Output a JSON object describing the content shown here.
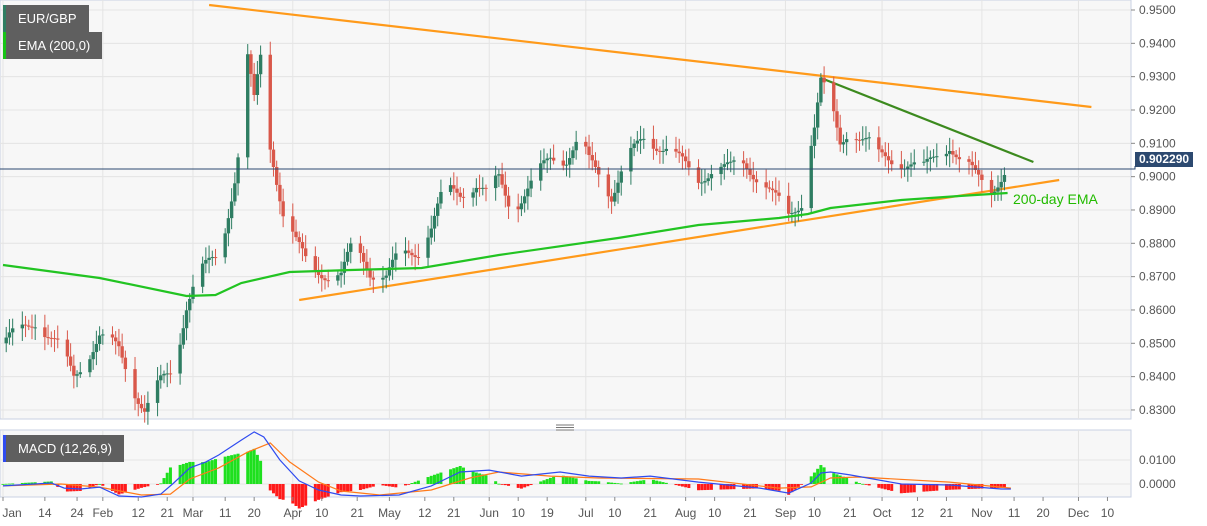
{
  "symbol_label": "EUR/GBP",
  "ema_label": "EMA (200,0)",
  "macd_label": "MACD (12,26,9)",
  "annotation": "200-day EMA",
  "last_price": "0.902290",
  "colors": {
    "up": "#2e7d62",
    "down": "#d9584a",
    "trend_orange": "#ff9a1a",
    "trend_green": "#3c8a1e",
    "ema": "#22c422",
    "macd": "#2f4bf0",
    "signal": "#ff7a1a",
    "hist_up": "#1ee01e",
    "hist_down": "#ff1a1a",
    "price_tag": "#2c4970"
  },
  "chart_data": {
    "type": "candlestick",
    "title": "EUR/GBP",
    "x_unit": "day of year",
    "price_axis": {
      "ylim": [
        0.83,
        0.95
      ],
      "ticks": [
        "0.9500",
        "0.9400",
        "0.9300",
        "0.9200",
        "0.9100",
        "0.9000",
        "0.8900",
        "0.8800",
        "0.8700",
        "0.8600",
        "0.8500",
        "0.8400",
        "0.8300"
      ]
    },
    "macd_axis": {
      "ticks": [
        "0.0100",
        "0.0000"
      ]
    },
    "x_ticks": [
      {
        "label": "Jan",
        "day": 0
      },
      {
        "label": "14",
        "day": 13
      },
      {
        "label": "24",
        "day": 23
      },
      {
        "label": "Feb",
        "day": 31
      },
      {
        "label": "12",
        "day": 42
      },
      {
        "label": "21",
        "day": 51
      },
      {
        "label": "Mar",
        "day": 59
      },
      {
        "label": "11",
        "day": 69
      },
      {
        "label": "20",
        "day": 78
      },
      {
        "label": "Apr",
        "day": 90
      },
      {
        "label": "10",
        "day": 99
      },
      {
        "label": "21",
        "day": 110
      },
      {
        "label": "May",
        "day": 120
      },
      {
        "label": "12",
        "day": 131
      },
      {
        "label": "21",
        "day": 140
      },
      {
        "label": "Jun",
        "day": 151
      },
      {
        "label": "10",
        "day": 160
      },
      {
        "label": "19",
        "day": 169
      },
      {
        "label": "Jul",
        "day": 181
      },
      {
        "label": "10",
        "day": 190
      },
      {
        "label": "21",
        "day": 201
      },
      {
        "label": "Aug",
        "day": 212
      },
      {
        "label": "10",
        "day": 221
      },
      {
        "label": "21",
        "day": 232
      },
      {
        "label": "Sep",
        "day": 243
      },
      {
        "label": "10",
        "day": 252
      },
      {
        "label": "21",
        "day": 263
      },
      {
        "label": "Oct",
        "day": 273
      },
      {
        "label": "12",
        "day": 284
      },
      {
        "label": "21",
        "day": 293
      },
      {
        "label": "Nov",
        "day": 304
      },
      {
        "label": "11",
        "day": 314
      },
      {
        "label": "20",
        "day": 323
      },
      {
        "label": "Dec",
        "day": 334
      },
      {
        "label": "10",
        "day": 343
      }
    ],
    "month_days": [
      0,
      31,
      59,
      90,
      120,
      151,
      181,
      212,
      243,
      273,
      304,
      334
    ],
    "close_path": [
      [
        0,
        0.85
      ],
      [
        10,
        0.857
      ],
      [
        18,
        0.848
      ],
      [
        22,
        0.84
      ],
      [
        30,
        0.852
      ],
      [
        36,
        0.848
      ],
      [
        41,
        0.836
      ],
      [
        44,
        0.83
      ],
      [
        49,
        0.838
      ],
      [
        53,
        0.842
      ],
      [
        57,
        0.862
      ],
      [
        60,
        0.87
      ],
      [
        66,
        0.875
      ],
      [
        69,
        0.885
      ],
      [
        72,
        0.9
      ],
      [
        74,
        0.914
      ],
      [
        76,
        0.935
      ],
      [
        78,
        0.922
      ],
      [
        80,
        0.935
      ],
      [
        82,
        0.914
      ],
      [
        84,
        0.905
      ],
      [
        87,
        0.89
      ],
      [
        91,
        0.88
      ],
      [
        94,
        0.874
      ],
      [
        98,
        0.872
      ],
      [
        105,
        0.87
      ],
      [
        109,
        0.88
      ],
      [
        114,
        0.872
      ],
      [
        119,
        0.87
      ],
      [
        123,
        0.876
      ],
      [
        129,
        0.878
      ],
      [
        133,
        0.885
      ],
      [
        137,
        0.896
      ],
      [
        142,
        0.895
      ],
      [
        147,
        0.898
      ],
      [
        150,
        0.895
      ],
      [
        154,
        0.899
      ],
      [
        158,
        0.89
      ],
      [
        164,
        0.898
      ],
      [
        170,
        0.905
      ],
      [
        175,
        0.906
      ],
      [
        179,
        0.912
      ],
      [
        182,
        0.904
      ],
      [
        189,
        0.895
      ],
      [
        193,
        0.905
      ],
      [
        199,
        0.91
      ],
      [
        206,
        0.91
      ],
      [
        210,
        0.905
      ],
      [
        215,
        0.898
      ],
      [
        220,
        0.903
      ],
      [
        226,
        0.902
      ],
      [
        230,
        0.904
      ],
      [
        235,
        0.9
      ],
      [
        240,
        0.893
      ],
      [
        244,
        0.888
      ],
      [
        248,
        0.893
      ],
      [
        250,
        0.906
      ],
      [
        252,
        0.915
      ],
      [
        254,
        0.928
      ],
      [
        257,
        0.922
      ],
      [
        260,
        0.91
      ],
      [
        263,
        0.915
      ],
      [
        266,
        0.912
      ],
      [
        269,
        0.91
      ],
      [
        272,
        0.906
      ],
      [
        277,
        0.905
      ],
      [
        281,
        0.904
      ],
      [
        286,
        0.902
      ],
      [
        291,
        0.908
      ],
      [
        294,
        0.91
      ],
      [
        297,
        0.905
      ],
      [
        302,
        0.9
      ],
      [
        307,
        0.897
      ],
      [
        310,
        0.9
      ],
      [
        312,
        0.90229
      ]
    ],
    "ema200": [
      [
        0,
        0.8735
      ],
      [
        30,
        0.8696
      ],
      [
        57,
        0.8642
      ],
      [
        66,
        0.8645
      ],
      [
        74,
        0.8681
      ],
      [
        89,
        0.8714
      ],
      [
        108,
        0.872
      ],
      [
        130,
        0.8726
      ],
      [
        154,
        0.8765
      ],
      [
        191,
        0.8816
      ],
      [
        216,
        0.8855
      ],
      [
        241,
        0.8876
      ],
      [
        250,
        0.8888
      ],
      [
        257,
        0.8906
      ],
      [
        279,
        0.893
      ],
      [
        297,
        0.8942
      ],
      [
        312,
        0.8951
      ]
    ],
    "trendlines": [
      {
        "name": "upper-resistance",
        "color": "orange",
        "points": [
          [
            64,
            0.9515
          ],
          [
            338,
            0.9209
          ]
        ]
      },
      {
        "name": "rising-support",
        "color": "orange",
        "points": [
          [
            92,
            0.863
          ],
          [
            328,
            0.899
          ]
        ]
      },
      {
        "name": "falling-resistance",
        "color": "green",
        "points": [
          [
            254,
            0.9296
          ],
          [
            320,
            0.9044
          ]
        ]
      }
    ],
    "macd": [
      [
        0,
        -0.0008
      ],
      [
        15,
        0.0004
      ],
      [
        19,
        -0.0017
      ],
      [
        24,
        -0.0021
      ],
      [
        30,
        -0.0013
      ],
      [
        36,
        -0.005
      ],
      [
        43,
        -0.0054
      ],
      [
        49,
        -0.0042
      ],
      [
        53,
        0.0004
      ],
      [
        58,
        0.0067
      ],
      [
        63,
        0.0092
      ],
      [
        67,
        0.0121
      ],
      [
        74,
        0.0183
      ],
      [
        78,
        0.0217
      ],
      [
        81,
        0.0196
      ],
      [
        86,
        0.01
      ],
      [
        92,
        0.0013
      ],
      [
        98,
        -0.0025
      ],
      [
        105,
        -0.0046
      ],
      [
        111,
        -0.005
      ],
      [
        123,
        -0.0046
      ],
      [
        133,
        -0.0008
      ],
      [
        142,
        0.005
      ],
      [
        151,
        0.0058
      ],
      [
        161,
        0.0033
      ],
      [
        173,
        0.005
      ],
      [
        182,
        0.0033
      ],
      [
        192,
        0.0025
      ],
      [
        201,
        0.0033
      ],
      [
        216,
        0.0008
      ],
      [
        235,
        -0.0017
      ],
      [
        244,
        -0.0038
      ],
      [
        251,
        0.0004
      ],
      [
        254,
        0.0046
      ],
      [
        257,
        0.005
      ],
      [
        263,
        0.0038
      ],
      [
        279,
        0
      ],
      [
        294,
        -0.0004
      ],
      [
        310,
        -0.0021
      ],
      [
        313,
        -0.0021
      ]
    ],
    "signal": [
      [
        0,
        -0.0008
      ],
      [
        18,
        0
      ],
      [
        30,
        -0.0013
      ],
      [
        43,
        -0.0046
      ],
      [
        52,
        -0.0042
      ],
      [
        58,
        0.0021
      ],
      [
        67,
        0.0067
      ],
      [
        76,
        0.0133
      ],
      [
        83,
        0.0171
      ],
      [
        89,
        0.0092
      ],
      [
        98,
        0.0008
      ],
      [
        105,
        -0.0029
      ],
      [
        117,
        -0.0046
      ],
      [
        133,
        -0.0025
      ],
      [
        145,
        0.0025
      ],
      [
        154,
        0.005
      ],
      [
        170,
        0.0033
      ],
      [
        185,
        0.0025
      ],
      [
        216,
        0.0021
      ],
      [
        241,
        -0.0017
      ],
      [
        251,
        -0.0012
      ],
      [
        257,
        0.0025
      ],
      [
        266,
        0.0029
      ],
      [
        294,
        0.0008
      ],
      [
        313,
        -0.0017
      ]
    ]
  }
}
